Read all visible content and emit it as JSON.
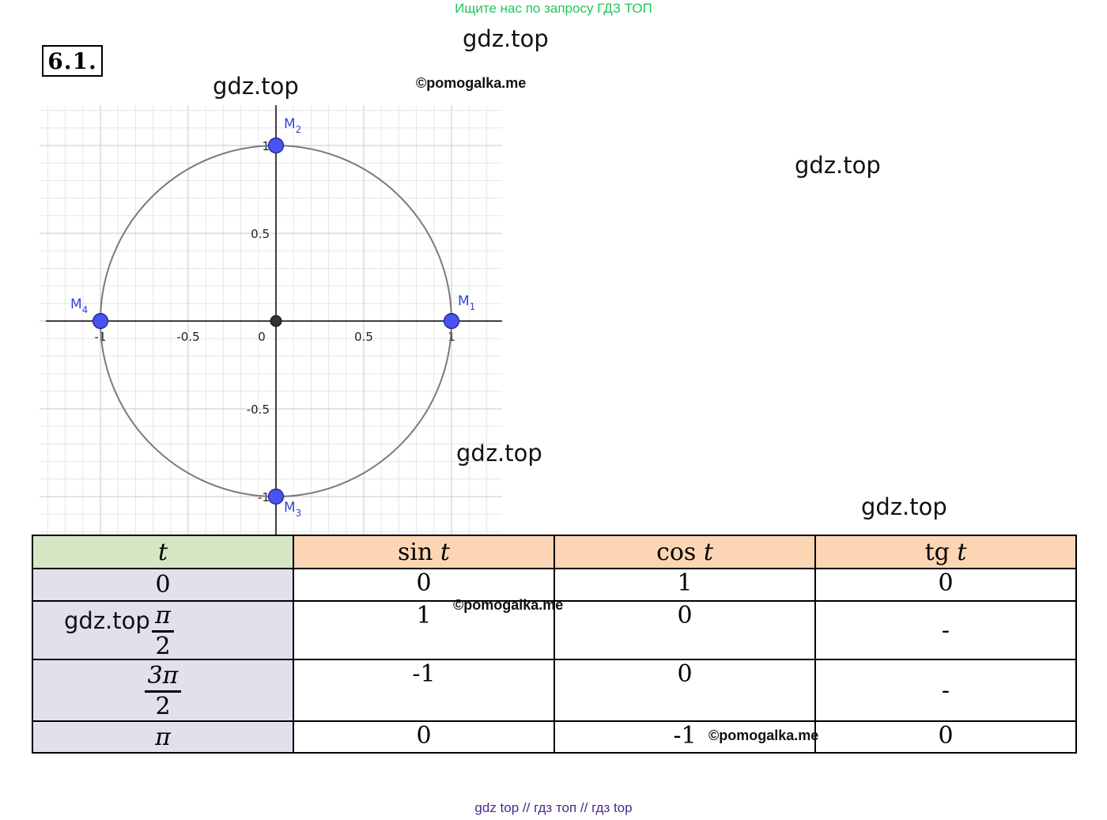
{
  "banner": "Ищите нас по запросу ГДЗ ТОП",
  "task_number": "6.1.",
  "watermarks": [
    "gdz.top",
    "gdz.top",
    "gdz.top",
    "gdz.top",
    "gdz.top",
    "gdz.top"
  ],
  "credit": "©pomogalka.me",
  "footer": "gdz top  //  гдз топ  //  гдз top",
  "chart_data": {
    "type": "scatter",
    "title": "",
    "xlim": [
      -1.3,
      1.3
    ],
    "ylim": [
      -1.22,
      1.22
    ],
    "grid": true,
    "x_ticks": [
      "-1",
      "-0.5",
      "0",
      "0.5",
      "1"
    ],
    "y_ticks": [
      "1",
      "0.5",
      "-0.5",
      "-1"
    ],
    "curve": {
      "type": "circle",
      "center": [
        0,
        0
      ],
      "radius": 1,
      "color": "#7a7a7a"
    },
    "origin_point": {
      "x": 0,
      "y": 0,
      "color": "#333333"
    },
    "points": [
      {
        "name": "M",
        "sub": "1",
        "x": 1,
        "y": 0
      },
      {
        "name": "M",
        "sub": "2",
        "x": 0,
        "y": 1
      },
      {
        "name": "M",
        "sub": "3",
        "x": 0,
        "y": -1
      },
      {
        "name": "M",
        "sub": "4",
        "x": -1,
        "y": 0
      }
    ],
    "point_color": "#4a52f0"
  },
  "table": {
    "headers": {
      "t": "t",
      "sin_fn": "sin ",
      "sin_arg": "t",
      "cos_fn": "cos ",
      "cos_arg": "t",
      "tg_fn": "tg ",
      "tg_arg": "t"
    },
    "rows": [
      {
        "t": "0",
        "sin": "0",
        "cos": "1",
        "tg": "0"
      },
      {
        "t_num": "π",
        "t_den": "2",
        "sin": "1",
        "cos": "0",
        "tg": "-"
      },
      {
        "t_num": "3π",
        "t_den": "2",
        "sin": "-1",
        "cos": "0",
        "tg": "-"
      },
      {
        "t": "π",
        "sin": "0",
        "cos": "-1",
        "tg": "0"
      }
    ]
  }
}
